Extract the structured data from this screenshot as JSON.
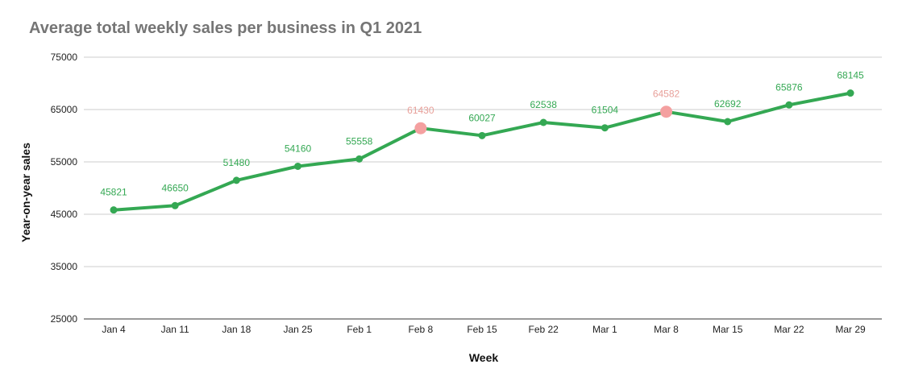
{
  "chart_data": {
    "type": "line",
    "title": "Average total weekly sales per business in Q1 2021",
    "xlabel": "Week",
    "ylabel": "Year-on-year sales",
    "categories": [
      "Jan 4",
      "Jan 11",
      "Jan 18",
      "Jan 25",
      "Feb 1",
      "Feb 8",
      "Feb 15",
      "Feb 22",
      "Mar 1",
      "Mar 8",
      "Mar 15",
      "Mar 22",
      "Mar 29"
    ],
    "series": [
      {
        "values": [
          45821,
          46650,
          51480,
          54160,
          55558,
          61430,
          60027,
          62538,
          61504,
          64582,
          62692,
          65876,
          68145
        ],
        "color": "#34a853"
      }
    ],
    "highlighted_categories": [
      "Feb 8",
      "Mar 8"
    ],
    "highlight_color": "#f4a0a0",
    "highlight_label_color": "#e8a09a",
    "label_color": "#34a853",
    "ylim": [
      25000,
      75000
    ],
    "yticks": [
      25000,
      35000,
      45000,
      55000,
      65000,
      75000
    ],
    "grid": true,
    "legend": "none"
  }
}
